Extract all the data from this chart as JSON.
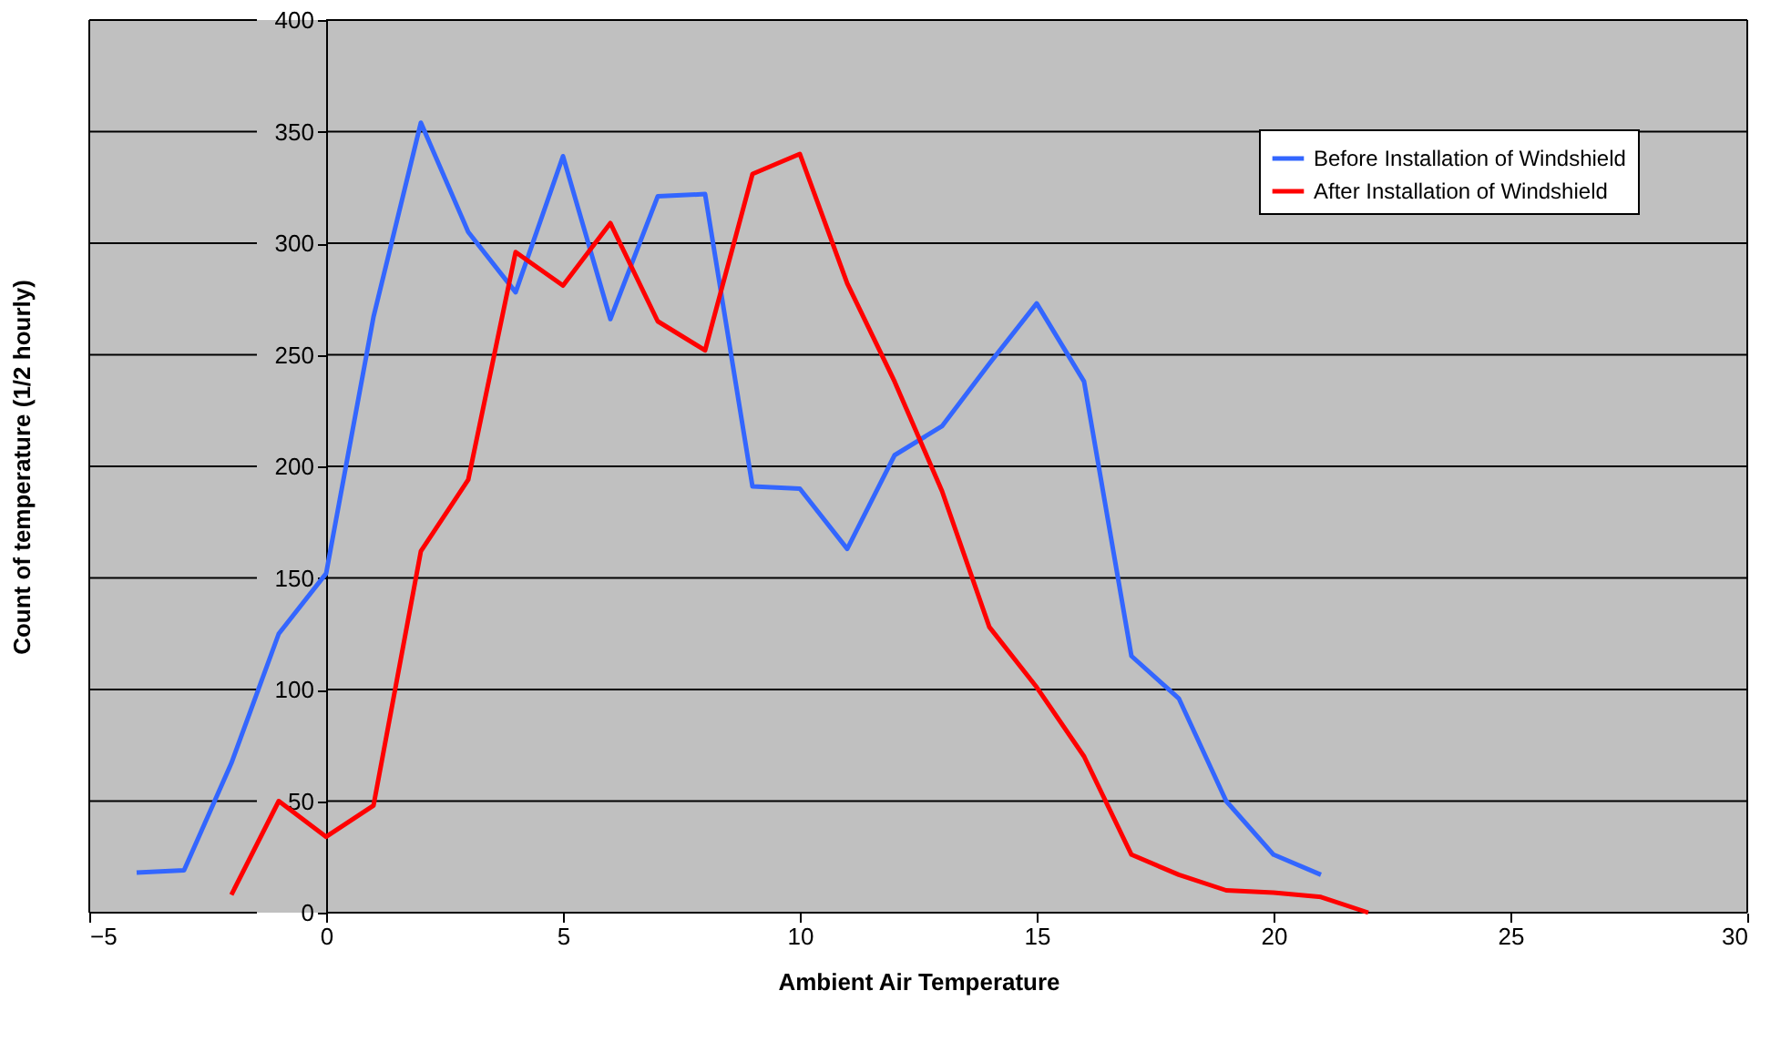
{
  "chart_data": {
    "type": "line",
    "xlabel": "Ambient Air Temperature",
    "ylabel": "Count of temperature (1/2 hourly)",
    "xlim": [
      -5,
      30
    ],
    "xticks": [
      -5,
      0,
      5,
      10,
      15,
      20,
      25,
      30
    ],
    "ylim": [
      0,
      400
    ],
    "yticks": [
      0,
      50,
      100,
      150,
      200,
      250,
      300,
      350,
      400
    ],
    "grid": "y",
    "legend": "top right",
    "marker": "none",
    "line_style": "solid",
    "series": [
      {
        "name": "Before Installation of Windshield",
        "color": "#3366ff",
        "x": [
          -4,
          -3,
          -2,
          -1,
          0,
          1,
          2,
          3,
          4,
          5,
          6,
          7,
          8,
          9,
          10,
          11,
          12,
          13,
          14,
          15,
          16,
          17,
          18,
          19,
          20,
          21
        ],
        "values": [
          18,
          19,
          67,
          125,
          152,
          267,
          354,
          305,
          278,
          339,
          266,
          321,
          322,
          191,
          190,
          163,
          205,
          218,
          246,
          273,
          238,
          115,
          96,
          50,
          26,
          17
        ]
      },
      {
        "name": "After Installation of Windshield",
        "color": "#ff0000",
        "x": [
          -2,
          -1,
          0,
          1,
          2,
          3,
          4,
          5,
          6,
          7,
          8,
          9,
          10,
          11,
          12,
          13,
          14,
          15,
          16,
          17,
          18,
          19,
          20,
          21,
          22
        ],
        "values": [
          8,
          50,
          34,
          48,
          162,
          194,
          296,
          281,
          309,
          265,
          252,
          331,
          340,
          282,
          238,
          189,
          128,
          101,
          70,
          26,
          17,
          10,
          9,
          7,
          0
        ]
      }
    ]
  }
}
